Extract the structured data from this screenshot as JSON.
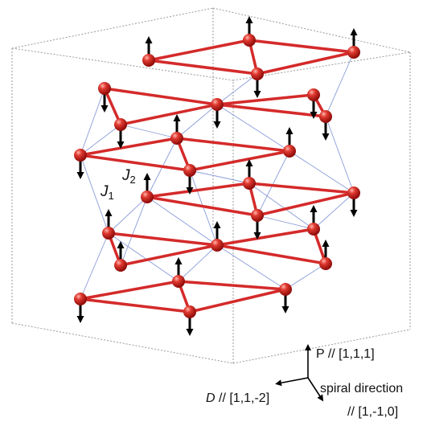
{
  "labels": {
    "j1": {
      "main": "J",
      "sub": "1"
    },
    "j2": {
      "main": "J",
      "sub": "2"
    },
    "p_axis": "P // [1,1,1]",
    "d_axis_italic": "D",
    "d_axis_rest": " // [1,1,-2]",
    "spiral_line1": "spiral direction",
    "spiral_line2": "// [1,-1,0]"
  },
  "colors": {
    "bond": "#d42a2a",
    "atom": "#c81414",
    "atom_highlight": "#ffb0a8",
    "thin_bond": "#8a9cd8",
    "box": "#9a9a9a",
    "arrow": "#000000"
  },
  "icons": {
    "spin": "spin-arrow-icon",
    "atom": "atom-sphere-icon"
  }
}
